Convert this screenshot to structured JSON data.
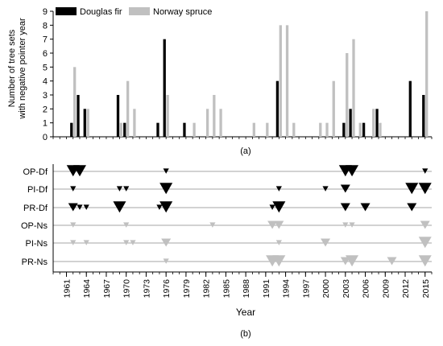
{
  "chart_data": [
    {
      "type": "bar",
      "panel_label": "(a)",
      "ylabel_line1": "Number of tree sets",
      "ylabel_line2": "with negative pointer year",
      "ylim": [
        0,
        9
      ],
      "yticks": [
        0,
        1,
        2,
        3,
        4,
        5,
        6,
        7,
        8,
        9
      ],
      "xlim": [
        1959,
        2016
      ],
      "grid": false,
      "legend_position": "top-left",
      "series": [
        {
          "name": "Douglas fir",
          "color": "#000000",
          "points": [
            [
              1962,
              1
            ],
            [
              1963,
              3
            ],
            [
              1964,
              2
            ],
            [
              1969,
              3
            ],
            [
              1970,
              1
            ],
            [
              1975,
              1
            ],
            [
              1976,
              7
            ],
            [
              1979,
              1
            ],
            [
              1993,
              4
            ],
            [
              2003,
              1
            ],
            [
              2004,
              2
            ],
            [
              2006,
              1
            ],
            [
              2008,
              2
            ],
            [
              2013,
              4
            ],
            [
              2015,
              3
            ]
          ]
        },
        {
          "name": "Norway spruce",
          "color": "#c0c0c0",
          "points": [
            [
              1962,
              5
            ],
            [
              1964,
              2
            ],
            [
              1969,
              1
            ],
            [
              1970,
              4
            ],
            [
              1971,
              2
            ],
            [
              1976,
              3
            ],
            [
              1980,
              1
            ],
            [
              1982,
              2
            ],
            [
              1983,
              3
            ],
            [
              1984,
              2
            ],
            [
              1989,
              1
            ],
            [
              1991,
              1
            ],
            [
              1993,
              8
            ],
            [
              1994,
              8
            ],
            [
              1995,
              1
            ],
            [
              1999,
              1
            ],
            [
              2000,
              1
            ],
            [
              2001,
              4
            ],
            [
              2003,
              6
            ],
            [
              2004,
              7
            ],
            [
              2005,
              1
            ],
            [
              2007,
              2
            ],
            [
              2008,
              1
            ],
            [
              2015,
              9
            ]
          ]
        }
      ]
    },
    {
      "type": "scatter",
      "panel_label": "(b)",
      "xlabel": "Year",
      "xlim": [
        1959,
        2016
      ],
      "xticks": [
        1961,
        1964,
        1967,
        1970,
        1973,
        1976,
        1979,
        1982,
        1985,
        1988,
        1991,
        1994,
        1997,
        2000,
        2003,
        2006,
        2009,
        2012,
        2015
      ],
      "marker": "downward-triangle",
      "size_scale": "1 = small, 2 = medium, 3 = large",
      "rows": [
        {
          "name": "OP-Df",
          "color": "#000000",
          "points": [
            [
              1962,
              3
            ],
            [
              1963,
              3
            ],
            [
              1976,
              1
            ],
            [
              2003,
              3
            ],
            [
              2004,
              3
            ],
            [
              2015,
              1
            ]
          ]
        },
        {
          "name": "PI-Df",
          "color": "#000000",
          "points": [
            [
              1962,
              1
            ],
            [
              1969,
              1
            ],
            [
              1970,
              1
            ],
            [
              1976,
              3
            ],
            [
              1993,
              1
            ],
            [
              2000,
              1
            ],
            [
              2003,
              2
            ],
            [
              2013,
              3
            ],
            [
              2015,
              3
            ]
          ]
        },
        {
          "name": "PR-Df",
          "color": "#000000",
          "points": [
            [
              1962,
              2
            ],
            [
              1963,
              1
            ],
            [
              1964,
              1
            ],
            [
              1969,
              3
            ],
            [
              1975,
              1
            ],
            [
              1976,
              3
            ],
            [
              1992,
              1
            ],
            [
              1993,
              3
            ],
            [
              2003,
              2
            ],
            [
              2006,
              2
            ],
            [
              2013,
              2
            ]
          ]
        },
        {
          "name": "OP-Ns",
          "color": "#c0c0c0",
          "points": [
            [
              1962,
              1
            ],
            [
              1970,
              1
            ],
            [
              1983,
              1
            ],
            [
              1992,
              2
            ],
            [
              1993,
              2
            ],
            [
              2003,
              1
            ],
            [
              2004,
              1
            ],
            [
              2015,
              2
            ]
          ]
        },
        {
          "name": "PI-Ns",
          "color": "#c0c0c0",
          "points": [
            [
              1962,
              1
            ],
            [
              1964,
              1
            ],
            [
              1970,
              1
            ],
            [
              1971,
              1
            ],
            [
              1976,
              2
            ],
            [
              1993,
              1
            ],
            [
              2000,
              2
            ],
            [
              2015,
              3
            ]
          ]
        },
        {
          "name": "PR-Ns",
          "color": "#c0c0c0",
          "points": [
            [
              1976,
              1
            ],
            [
              1992,
              3
            ],
            [
              1993,
              3
            ],
            [
              2003,
              2
            ],
            [
              2004,
              3
            ],
            [
              2010,
              2
            ],
            [
              2015,
              3
            ]
          ]
        }
      ]
    }
  ]
}
